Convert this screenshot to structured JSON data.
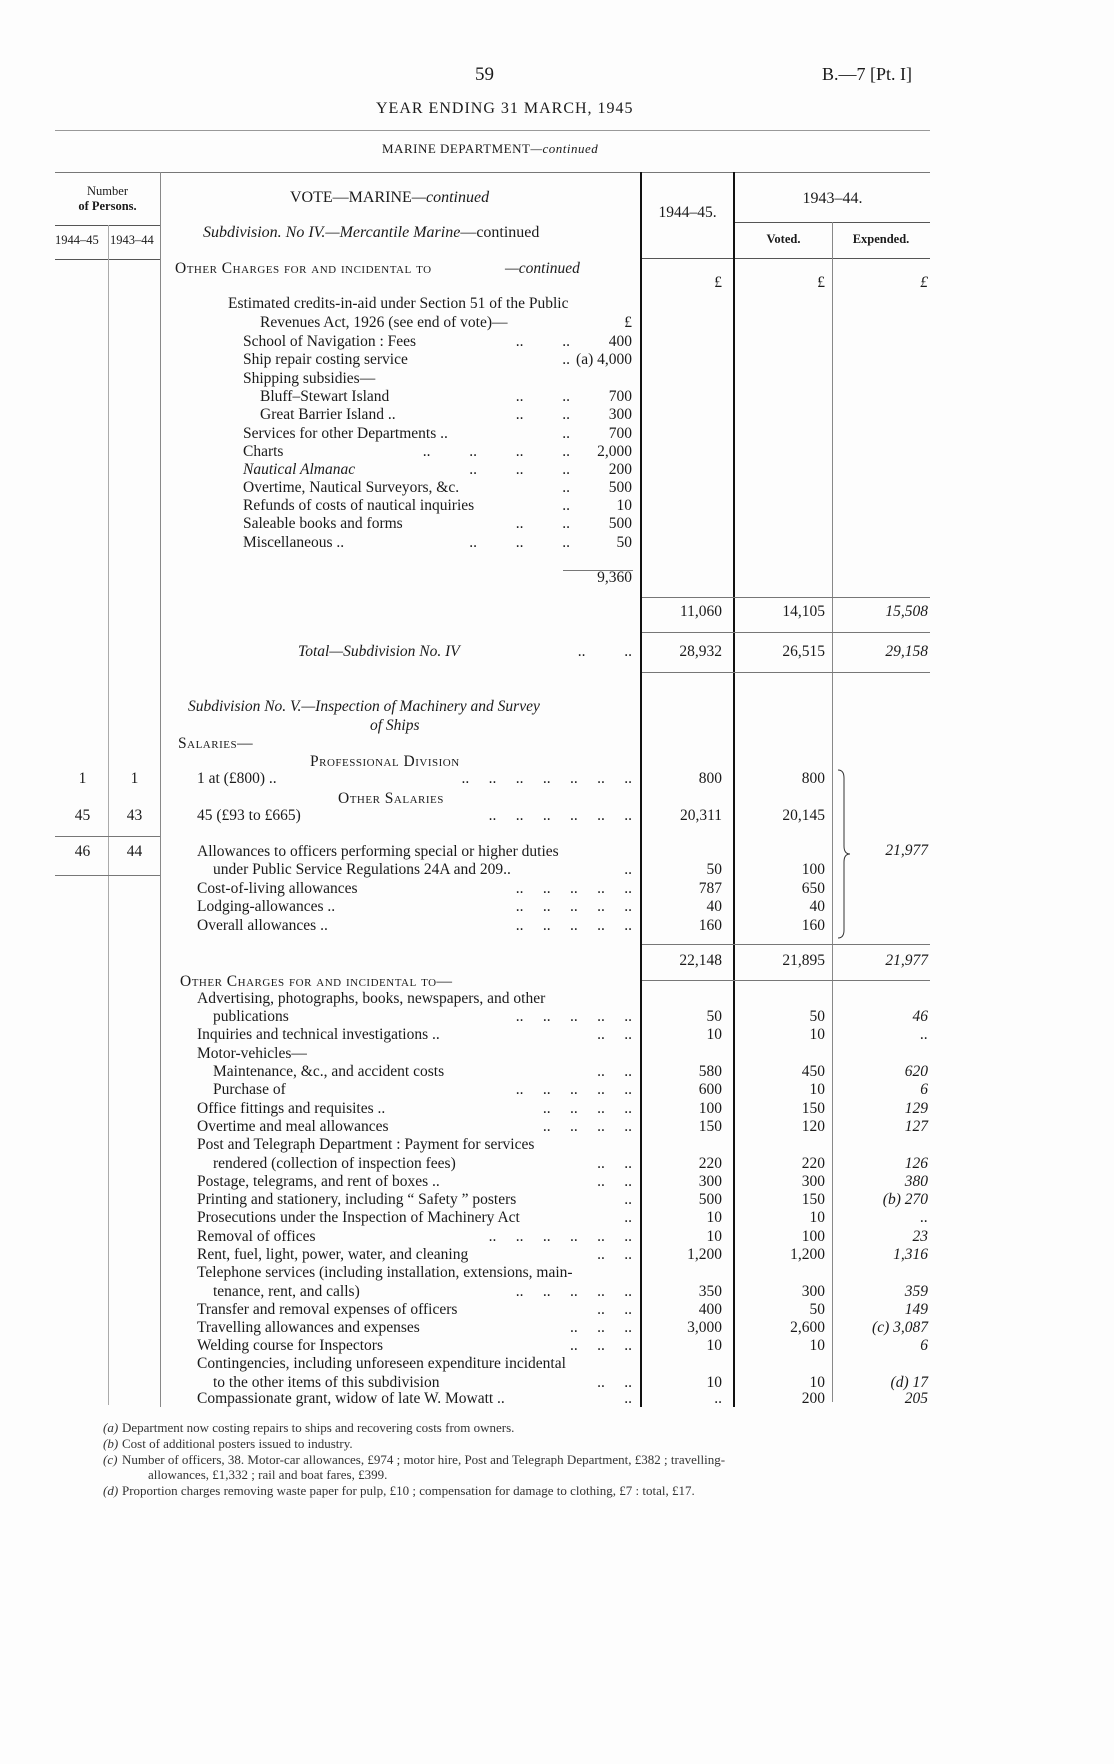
{
  "header": {
    "page_number": "59",
    "reference": "B.—7 [Pt. I]",
    "title": "YEAR ENDING 31 MARCH, 1945",
    "department": "MARINE DEPARTMENT",
    "department_suffix": "—continued"
  },
  "table_header": {
    "persons_label_1": "Number",
    "persons_label_2": "of Persons.",
    "persons_col_1": "1944–45",
    "persons_col_2": "1943–44",
    "vote": "VOTE—MARINE",
    "vote_suffix": "—continued",
    "subdivision": "Subdivision. No IV.—Mercantile Marine",
    "subdivision_suffix": "—continued",
    "col_1944": "1944–45.",
    "col_1943": "1943–44.",
    "col_voted": "Voted.",
    "col_expended": "Expended.",
    "currency": "£"
  },
  "lines": [
    {
      "text": "Other Charges for and incidental to",
      "suffix": "—continued",
      "style": "smallcaps"
    },
    {
      "text": "",
      "a": "£",
      "v": "£",
      "e": "£"
    },
    {
      "text": "Estimated credits-in-aid under Section 51 of the Public"
    },
    {
      "text": "Revenues Act, 1926 (see end of vote)—",
      "inner": "£"
    },
    {
      "text": "School of Navigation : Fees",
      "dots": "..          ..",
      "inner": "400"
    },
    {
      "text": "Ship repair costing service",
      "dots": "..",
      "inner": "(a) 4,000"
    },
    {
      "text": "Shipping subsidies—"
    },
    {
      "text": "Bluff–Stewart Island",
      "dots": "..          ..",
      "inner": "700"
    },
    {
      "text": "Great Barrier Island ..",
      "dots": "..          ..",
      "inner": "300"
    },
    {
      "text": "Services for other Departments ..",
      "dots": "..",
      "inner": "700"
    },
    {
      "text": "Charts",
      "dots": "..          ..          ..          ..",
      "inner": "2,000"
    },
    {
      "text": "Nautical Almanac",
      "style": "italic",
      "dots": "..          ..          ..",
      "inner": "200"
    },
    {
      "text": "Overtime, Nautical Surveyors, &c.",
      "dots": "..",
      "inner": "500"
    },
    {
      "text": "Refunds of costs of nautical inquiries",
      "dots": "..",
      "inner": "10"
    },
    {
      "text": "Saleable books and forms",
      "dots": "..          ..",
      "inner": "500"
    },
    {
      "text": "Miscellaneous ..",
      "dots": "..          ..          ..",
      "inner": "50"
    },
    {
      "text": "",
      "inner": "9,360"
    },
    {
      "text": "",
      "a": "11,060",
      "v": "14,105",
      "e": "15,508"
    },
    {
      "text": "Total—Subdivision No. IV",
      "style": "italic",
      "dots": "..          ..",
      "a": "28,932",
      "v": "26,515",
      "e": "29,158"
    },
    {
      "text": "Subdivision No. V.—Inspection of Machinery and Survey",
      "style": "italic"
    },
    {
      "text": "of Ships",
      "style": "italic"
    },
    {
      "text": "Salaries—",
      "style": "smallcaps"
    },
    {
      "text": "Professional Division",
      "style": "smallcaps"
    },
    {
      "text": "1 at (£800) ..",
      "dots": "..     ..     ..     ..     ..     ..     ..",
      "p1": "1",
      "p2": "1",
      "a": "800",
      "v": "800"
    },
    {
      "text": "Other Salaries",
      "style": "smallcaps"
    },
    {
      "text": "45 (£93 to £665)",
      "dots": "..     ..     ..     ..     ..     ..",
      "p1": "45",
      "p2": "43",
      "a": "20,311",
      "v": "20,145"
    },
    {
      "text": "Allowances to officers performing special or higher duties",
      "p1": "46",
      "p2": "44"
    },
    {
      "text": "under Public Service Regulations 24A and 209..",
      "dots": "..",
      "a": "50",
      "v": "100"
    },
    {
      "text": "Cost-of-living allowances",
      "dots": "..     ..     ..     ..     ..",
      "a": "787",
      "v": "650"
    },
    {
      "text": "Lodging-allowances ..",
      "dots": "..     ..     ..     ..     ..",
      "a": "40",
      "v": "40"
    },
    {
      "text": "Overall allowances ..",
      "dots": "..     ..     ..     ..     ..",
      "a": "160",
      "v": "160"
    },
    {
      "text": "",
      "a": "22,148",
      "v": "21,895",
      "e": "21,977"
    },
    {
      "text": "Other Charges for and incidental to—",
      "style": "smallcaps"
    },
    {
      "text": "Advertising, photographs, books, newspapers, and other"
    },
    {
      "text": "publications",
      "dots": "..     ..     ..     ..     ..",
      "a": "50",
      "v": "50",
      "e": "46"
    },
    {
      "text": "Inquiries and technical investigations ..",
      "dots": "..     ..",
      "a": "10",
      "v": "10",
      "e": ".."
    },
    {
      "text": "Motor-vehicles—"
    },
    {
      "text": "Maintenance, &c., and accident costs",
      "dots": "..     ..",
      "a": "580",
      "v": "450",
      "e": "620"
    },
    {
      "text": "Purchase of",
      "dots": "..     ..     ..     ..     ..",
      "a": "600",
      "v": "10",
      "e": "6"
    },
    {
      "text": "Office fittings and requisites ..",
      "dots": "..     ..     ..     ..",
      "a": "100",
      "v": "150",
      "e": "129"
    },
    {
      "text": "Overtime and meal allowances",
      "dots": "..     ..     ..     ..",
      "a": "150",
      "v": "120",
      "e": "127"
    },
    {
      "text": "Post and Telegraph Department : Payment for services"
    },
    {
      "text": "rendered (collection of inspection fees)",
      "dots": "..     ..",
      "a": "220",
      "v": "220",
      "e": "126"
    },
    {
      "text": "Postage, telegrams, and rent of boxes ..",
      "dots": "..     ..",
      "a": "300",
      "v": "300",
      "e": "380"
    },
    {
      "text": "Printing and stationery, including “ Safety ” posters",
      "dots": "..",
      "a": "500",
      "v": "150",
      "e": "(b) 270"
    },
    {
      "text": "Prosecutions under the Inspection of Machinery Act",
      "dots": "..",
      "a": "10",
      "v": "10",
      "e": ".."
    },
    {
      "text": "Removal of offices",
      "dots": "..     ..     ..     ..     ..     ..",
      "a": "10",
      "v": "100",
      "e": "23"
    },
    {
      "text": "Rent, fuel, light, power, water, and cleaning",
      "dots": "..     ..",
      "a": "1,200",
      "v": "1,200",
      "e": "1,316"
    },
    {
      "text": "Telephone services (including installation, extensions, main-"
    },
    {
      "text": "tenance, rent, and calls)",
      "dots": "..     ..     ..     ..     ..",
      "a": "350",
      "v": "300",
      "e": "359"
    },
    {
      "text": "Transfer and removal expenses of officers",
      "dots": "..     ..",
      "a": "400",
      "v": "50",
      "e": "149"
    },
    {
      "text": "Travelling allowances and expenses",
      "dots": "..     ..     ..",
      "a": "3,000",
      "v": "2,600",
      "e": "(c) 3,087"
    },
    {
      "text": "Welding course for Inspectors",
      "dots": "..     ..     ..",
      "a": "10",
      "v": "10",
      "e": "6"
    },
    {
      "text": "Contingencies, including unforeseen expenditure incidental"
    },
    {
      "text": "to the other items of this subdivision",
      "dots": "..     ..",
      "a": "10",
      "v": "10",
      "e": "(d) 17"
    },
    {
      "text": "Compassionate grant, widow of late W. Mowatt ..",
      "dots": "..",
      "a": "..",
      "v": "200",
      "e": "205"
    }
  ],
  "footnotes": [
    {
      "mark": "(a)",
      "text": "Department now costing repairs to ships and recovering costs from owners."
    },
    {
      "mark": "(b)",
      "text": "Cost of additional posters issued to industry."
    },
    {
      "mark": "(c)",
      "text": "Number of officers, 38.   Motor-car allowances, £974 ;  motor hire, Post and Telegraph Department, £382 ;  travelling-"
    },
    {
      "mark": "",
      "text": "allowances, £1,332 ;  rail and boat fares, £399."
    },
    {
      "mark": "(d)",
      "text": "Proportion charges removing waste paper for pulp, £10 ;  compensation for damage to clothing, £7 :  total, £17."
    }
  ]
}
